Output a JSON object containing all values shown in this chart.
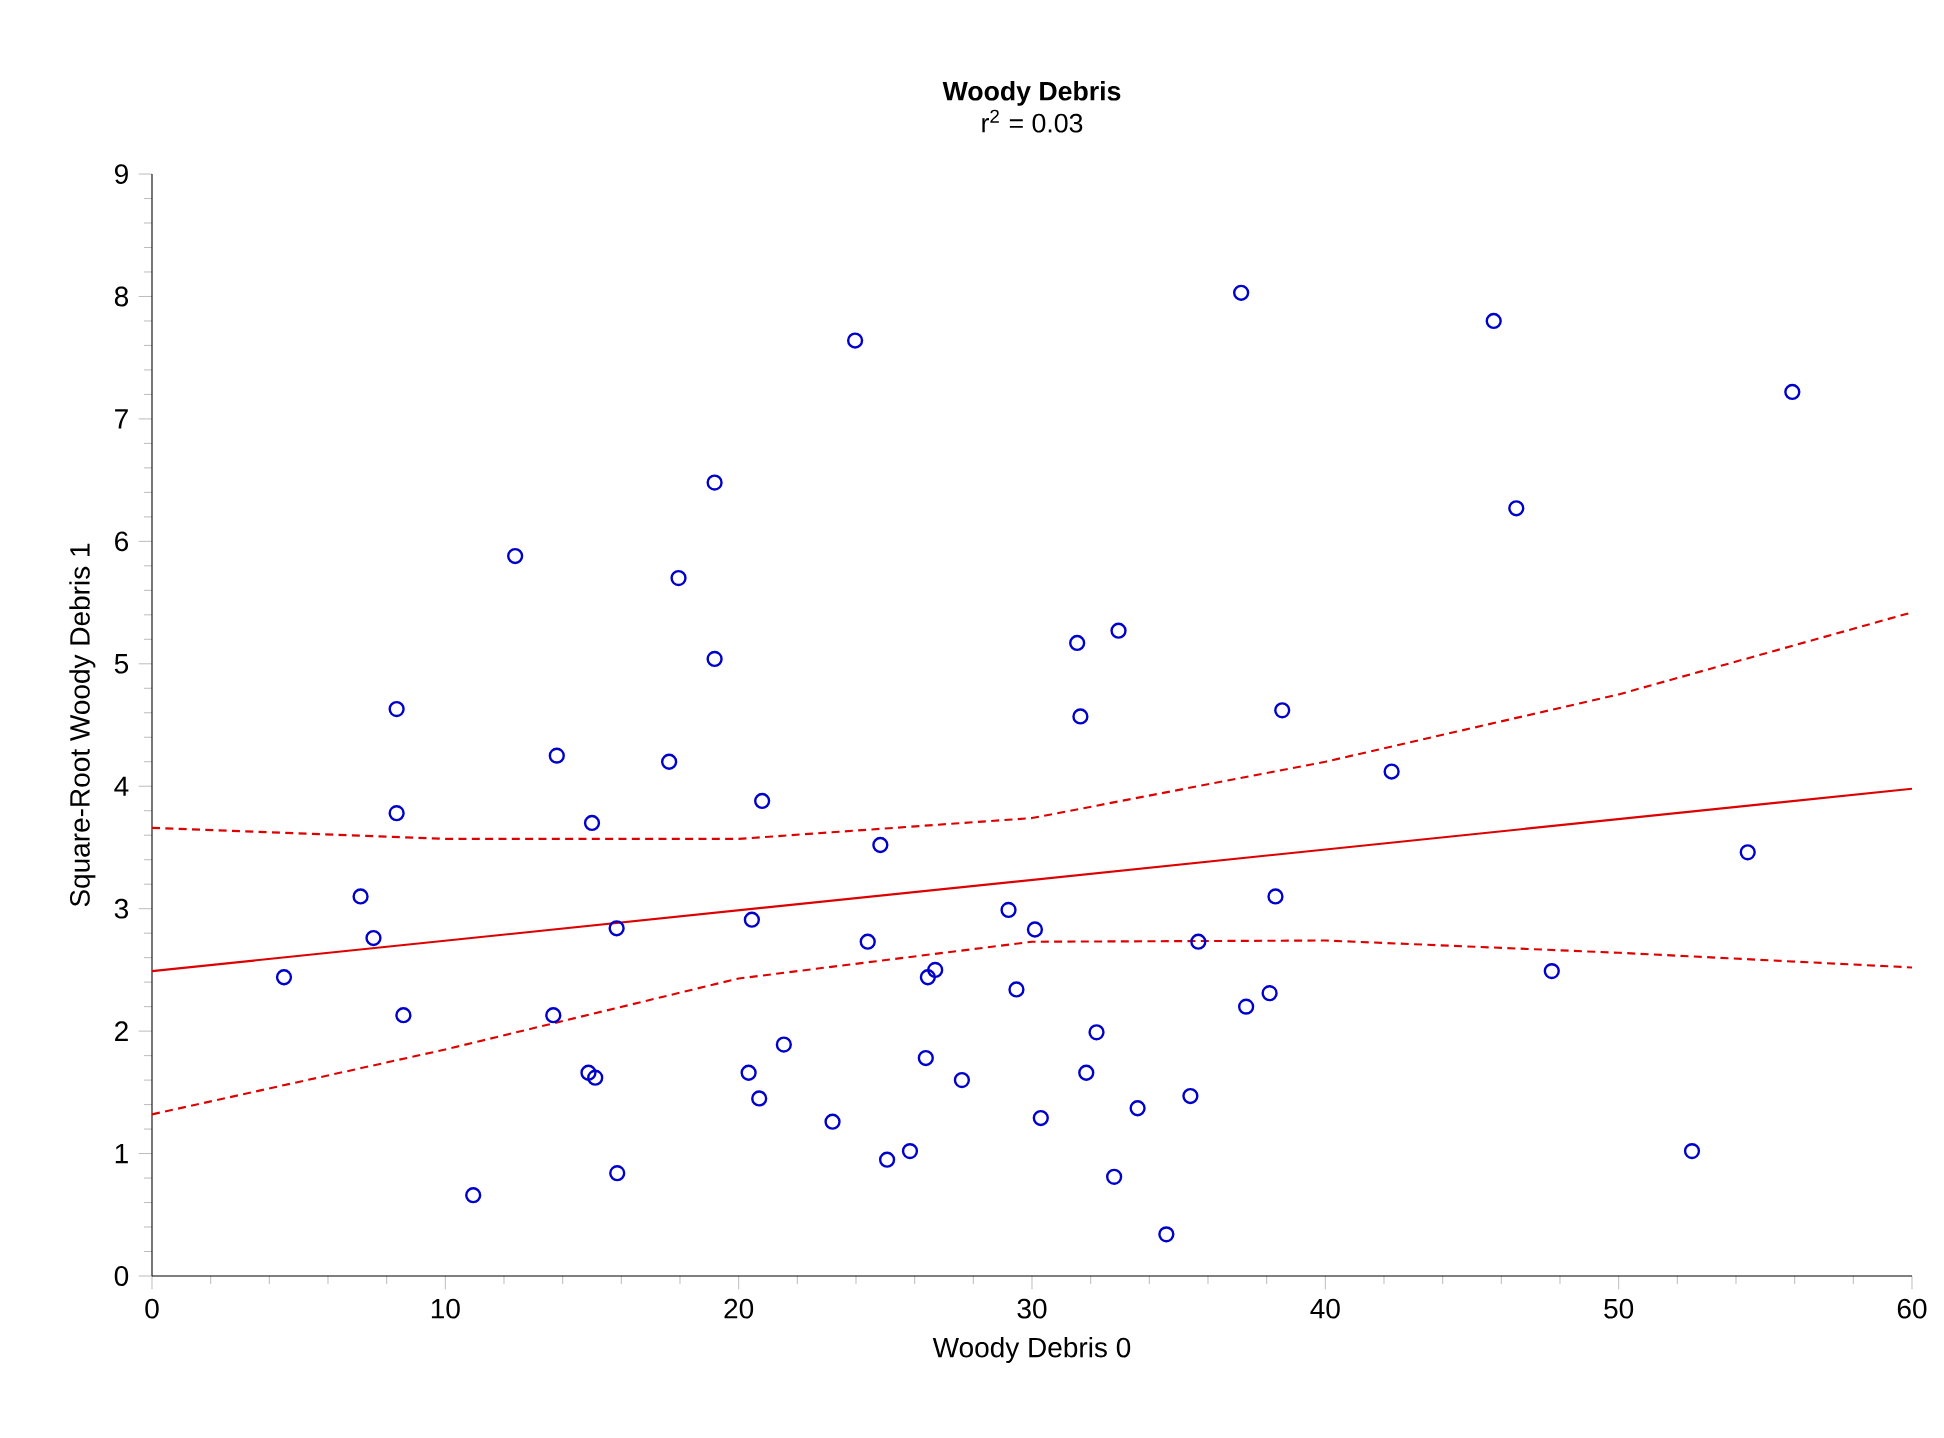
{
  "chart_data": {
    "type": "scatter",
    "title": "Woody Debris",
    "subtitle": "r$^{2}$ = 0.03",
    "xlabel": "Woody Debris 0",
    "ylabel": "Square-Root Woody Debris 1",
    "xlim": [
      0,
      60
    ],
    "ylim": [
      0,
      9
    ],
    "xticks": [
      0,
      10,
      20,
      30,
      40,
      50,
      60
    ],
    "yticks": [
      0,
      1,
      2,
      3,
      4,
      5,
      6,
      7,
      8,
      9
    ],
    "series": [
      {
        "marker": "circle",
        "color": "#0000cc",
        "x": [
          23.97,
          19.18,
          12.38,
          17.95,
          19.18,
          8.34,
          37.13,
          45.74,
          55.92,
          46.51,
          31.54,
          32.95,
          31.65,
          38.53,
          42.26,
          54.4,
          29.2,
          30.1,
          38.3,
          35.67,
          47.72,
          29.47,
          38.1,
          37.3,
          32.2,
          31.85,
          30.3,
          33.6,
          35.4,
          52.5,
          32.8,
          34.58,
          13.8,
          17.63,
          20.8,
          8.34,
          15.0,
          24.83,
          7.11,
          7.55,
          20.45,
          15.84,
          4.5,
          24.4,
          26.7,
          26.45,
          8.57,
          13.68,
          21.54,
          14.88,
          15.11,
          20.34,
          20.7,
          26.38,
          27.61,
          23.2,
          25.06,
          25.84,
          15.86,
          10.95
        ],
        "values": [
          7.64,
          6.48,
          5.88,
          5.7,
          5.04,
          4.63,
          8.03,
          7.8,
          7.22,
          6.27,
          5.17,
          5.27,
          4.57,
          4.62,
          4.12,
          3.46,
          2.99,
          2.83,
          3.1,
          2.73,
          2.49,
          2.34,
          2.31,
          2.2,
          1.99,
          1.66,
          1.29,
          1.37,
          1.47,
          1.02,
          0.81,
          0.34,
          4.25,
          4.2,
          3.88,
          3.78,
          3.7,
          3.52,
          3.1,
          2.76,
          2.91,
          2.84,
          2.44,
          2.73,
          2.5,
          2.44,
          2.13,
          2.13,
          1.89,
          1.66,
          1.62,
          1.66,
          1.45,
          1.78,
          1.6,
          1.26,
          0.95,
          1.02,
          0.84,
          0.66
        ]
      },
      {
        "type": "line",
        "marker": "none",
        "line_style": "solid",
        "color": "#dd0000",
        "x": [
          0,
          60
        ],
        "values": [
          2.49,
          3.98
        ]
      },
      {
        "type": "line",
        "marker": "none",
        "line_style": "dashed",
        "color": "#dd0000",
        "x": [
          0,
          10,
          20,
          30,
          40,
          50,
          60
        ],
        "values": [
          3.66,
          3.57,
          3.57,
          3.74,
          4.2,
          4.75,
          5.42
        ]
      },
      {
        "type": "line",
        "marker": "none",
        "line_style": "dashed",
        "color": "#dd0000",
        "x": [
          0,
          10,
          20,
          30,
          40,
          50,
          60
        ],
        "values": [
          1.32,
          1.85,
          2.43,
          2.73,
          2.74,
          2.64,
          2.52
        ]
      }
    ]
  }
}
